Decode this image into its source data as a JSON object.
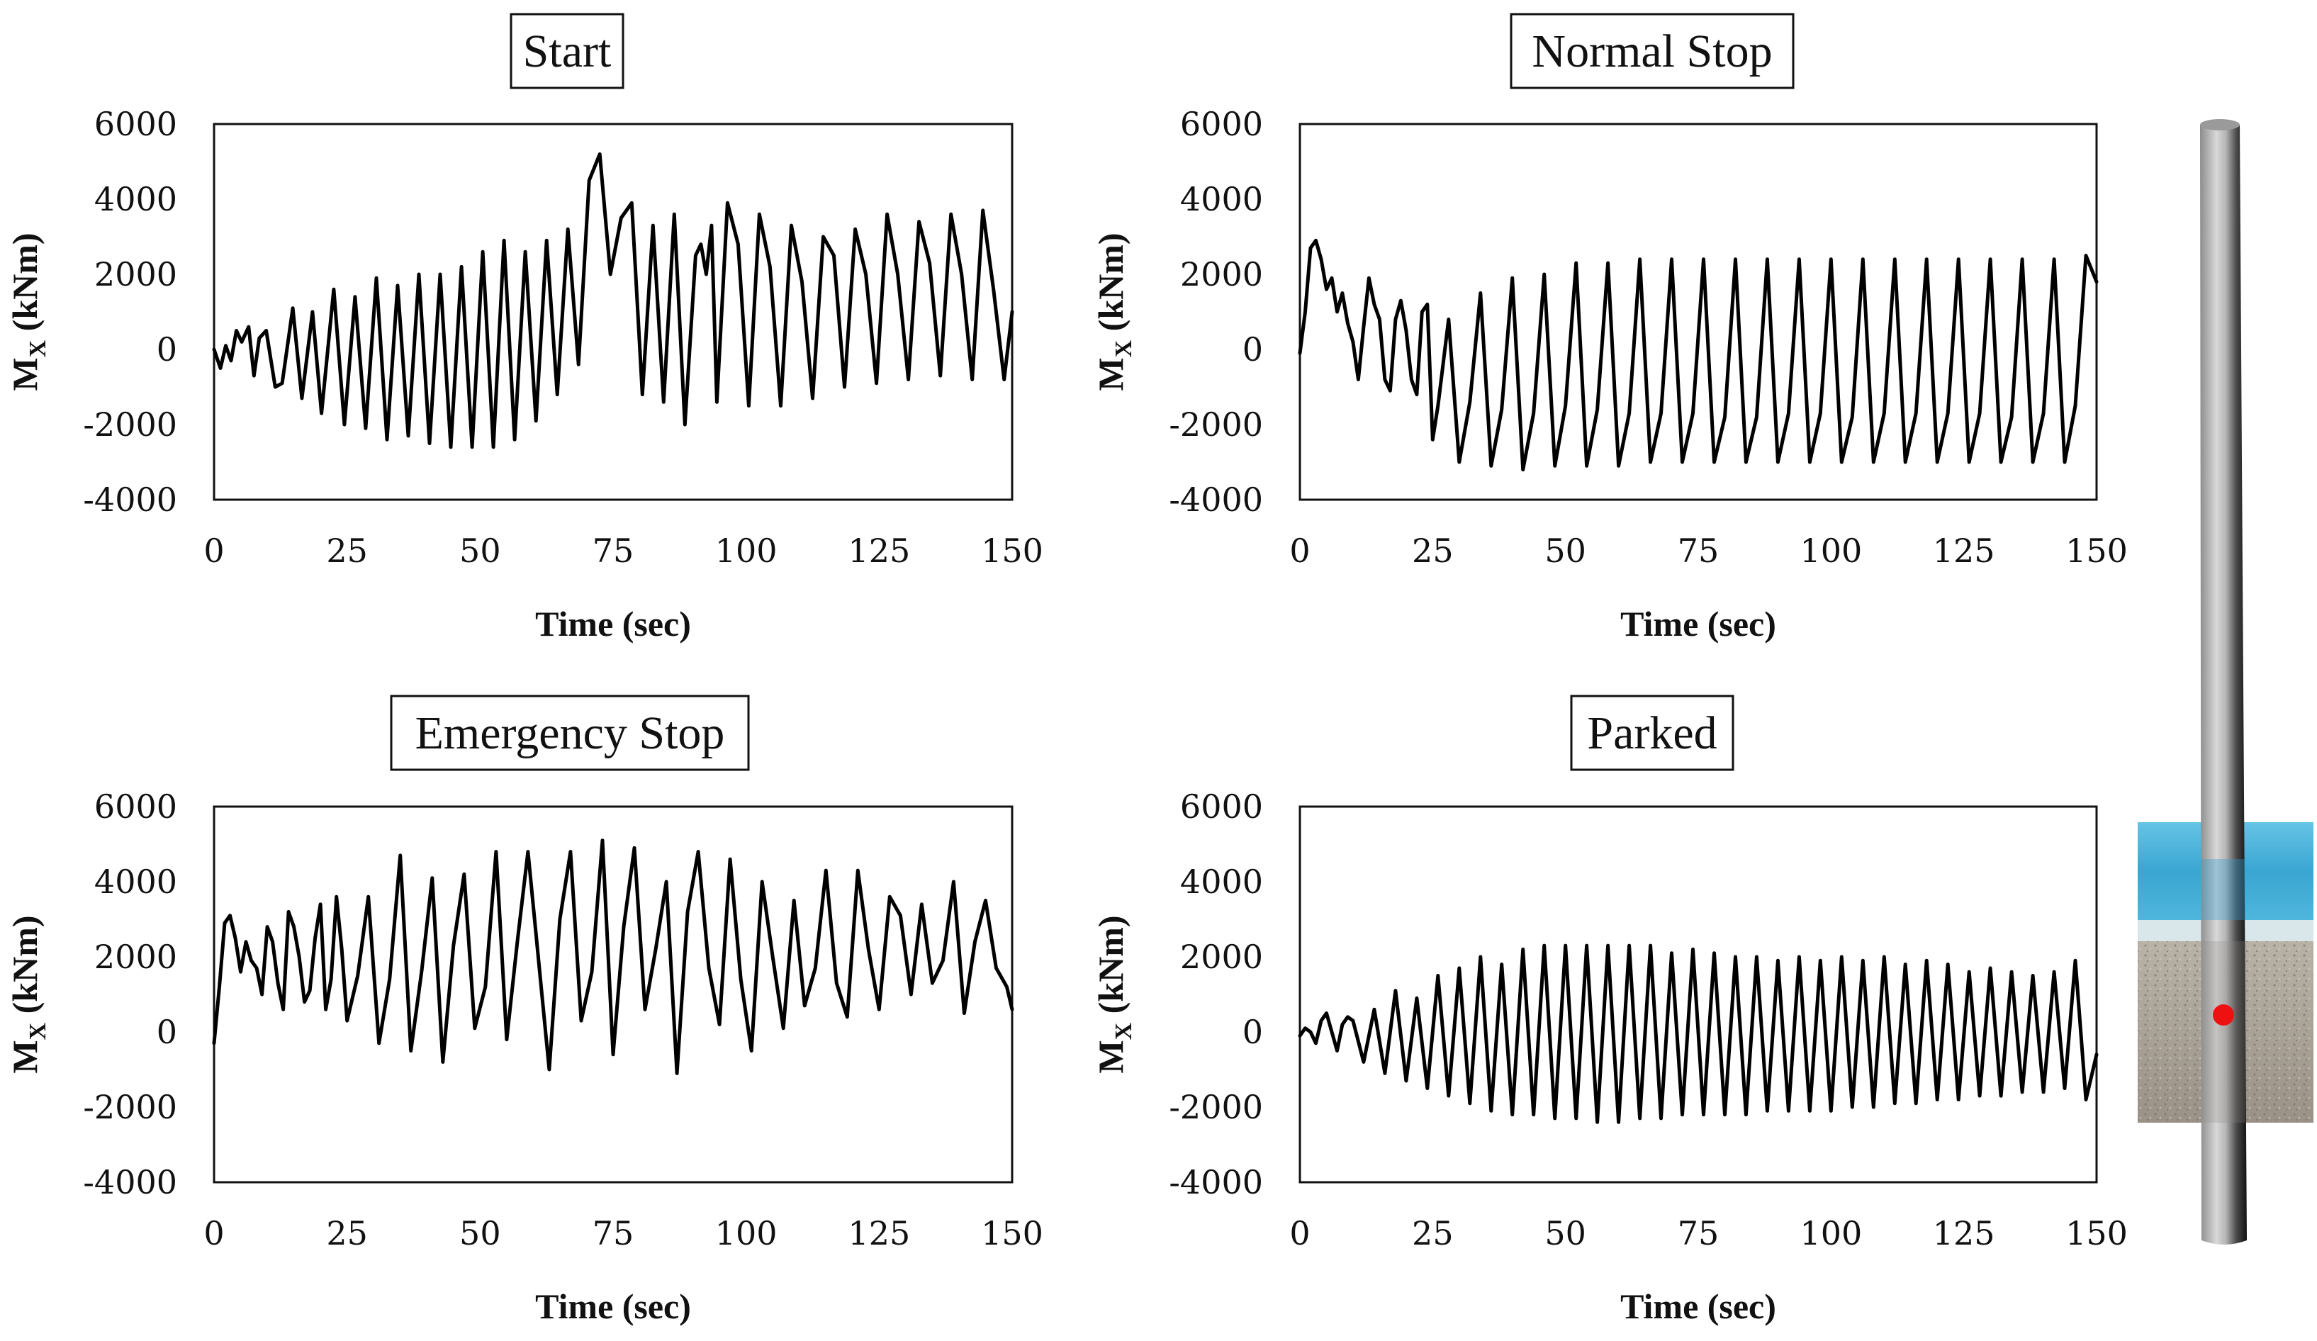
{
  "figure": {
    "y_tick_labels": [
      "6000",
      "4000",
      "2000",
      "0",
      "-2000",
      "-4000"
    ],
    "x_tick_labels": [
      "0",
      "25",
      "50",
      "75",
      "100",
      "125",
      "150"
    ]
  },
  "chart_data": [
    {
      "type": "line",
      "title": "Start",
      "xlabel": "Time (sec)",
      "ylabel_main": "M",
      "ylabel_sub": "X",
      "ylabel_unit": " (kNm)",
      "xlim": [
        0,
        150
      ],
      "ylim": [
        -4000,
        6000
      ],
      "xticks": [
        0,
        25,
        50,
        75,
        100,
        125,
        150
      ],
      "yticks": [
        6000,
        4000,
        2000,
        0,
        -2000,
        -4000
      ],
      "series": [
        {
          "name": "Mx",
          "color": "#000000",
          "x": [
            0,
            1.2,
            2.2,
            3.2,
            4.2,
            5.2,
            6.5,
            7.5,
            8.5,
            9.8,
            11.5,
            12.8,
            14.8,
            16.5,
            18.5,
            20.2,
            22.5,
            24.5,
            26.5,
            28.5,
            30.5,
            32.5,
            34.5,
            36.5,
            38.5,
            40.5,
            42.5,
            44.5,
            46.5,
            48.5,
            50.5,
            52.5,
            54.5,
            56.5,
            58.5,
            60.5,
            62.5,
            64.5,
            66.5,
            68.5,
            70.5,
            72.5,
            74.5,
            76.5,
            78.5,
            80.5,
            82.5,
            84.5,
            86.5,
            88.5,
            90.5,
            91.5,
            92.5,
            93.5,
            94.5,
            96.5,
            98.5,
            100.5,
            102.5,
            104.5,
            106.5,
            108.5,
            110.5,
            112.5,
            114.5,
            116.5,
            118.5,
            120.5,
            122.5,
            124.5,
            126.5,
            128.5,
            130.5,
            132.5,
            134.5,
            136.5,
            138.5,
            140.5,
            142.5,
            144.5,
            146.5,
            148.5,
            150
          ],
          "y": [
            0,
            -500,
            100,
            -300,
            500,
            200,
            600,
            -700,
            300,
            500,
            -1000,
            -900,
            1100,
            -1300,
            1000,
            -1700,
            1600,
            -2000,
            1400,
            -2100,
            1900,
            -2400,
            1700,
            -2300,
            2000,
            -2500,
            2000,
            -2600,
            2200,
            -2600,
            2600,
            -2600,
            2900,
            -2400,
            2600,
            -1900,
            2900,
            -1200,
            3200,
            -400,
            4500,
            5200,
            2000,
            3500,
            3900,
            -1200,
            3300,
            -1400,
            3600,
            -2000,
            2500,
            2800,
            2000,
            3300,
            -1400,
            3900,
            2800,
            -1500,
            3600,
            2200,
            -1500,
            3300,
            1800,
            -1300,
            3000,
            2500,
            -1000,
            3200,
            2000,
            -900,
            3600,
            2000,
            -800,
            3400,
            2300,
            -700,
            3600,
            2000,
            -800,
            3700,
            1600,
            -800,
            1000
          ]
        }
      ]
    },
    {
      "type": "line",
      "title": "Normal Stop",
      "xlabel": "Time (sec)",
      "ylabel_main": "M",
      "ylabel_sub": "X",
      "ylabel_unit": " (kNm)",
      "xlim": [
        0,
        150
      ],
      "ylim": [
        -4000,
        6000
      ],
      "xticks": [
        0,
        25,
        50,
        75,
        100,
        125,
        150
      ],
      "yticks": [
        6000,
        4000,
        2000,
        0,
        -2000,
        -4000
      ],
      "series": [
        {
          "name": "Mx",
          "color": "#000000",
          "x": [
            0,
            1,
            2,
            3,
            4,
            5,
            6,
            7,
            8,
            9,
            10,
            11,
            12,
            13,
            14,
            15,
            16,
            17,
            18,
            19,
            20,
            21,
            22,
            23,
            24,
            25,
            26,
            28,
            30,
            32,
            34,
            36,
            38,
            40,
            42,
            44,
            46,
            48,
            50,
            52,
            54,
            56,
            58,
            60,
            62,
            64,
            66,
            68,
            70,
            72,
            74,
            76,
            78,
            80,
            82,
            84,
            86,
            88,
            90,
            92,
            94,
            96,
            98,
            100,
            102,
            104,
            106,
            108,
            110,
            112,
            114,
            116,
            118,
            120,
            122,
            124,
            126,
            128,
            130,
            132,
            134,
            136,
            138,
            140,
            142,
            144,
            146,
            148,
            150
          ],
          "y": [
            -100,
            1000,
            2700,
            2900,
            2400,
            1600,
            1900,
            1000,
            1500,
            700,
            200,
            -800,
            600,
            1900,
            1200,
            800,
            -800,
            -1100,
            800,
            1300,
            500,
            -800,
            -1200,
            1000,
            1200,
            -2400,
            -1500,
            800,
            -3000,
            -1400,
            1500,
            -3100,
            -1600,
            1900,
            -3200,
            -1700,
            2000,
            -3100,
            -1500,
            2300,
            -3100,
            -1600,
            2300,
            -3100,
            -1700,
            2400,
            -3000,
            -1700,
            2400,
            -3000,
            -1700,
            2400,
            -3000,
            -1800,
            2400,
            -3000,
            -1800,
            2400,
            -3000,
            -1700,
            2400,
            -3000,
            -1700,
            2400,
            -3000,
            -1800,
            2400,
            -3000,
            -1700,
            2400,
            -3000,
            -1700,
            2400,
            -3000,
            -1700,
            2400,
            -3000,
            -1700,
            2400,
            -3000,
            -1800,
            2400,
            -3000,
            -1700,
            2400,
            -3000,
            -1500,
            2500,
            1800
          ]
        }
      ]
    },
    {
      "type": "line",
      "title": "Emergency Stop",
      "xlabel": "Time (sec)",
      "ylabel_main": "M",
      "ylabel_sub": "X",
      "ylabel_unit": " (kNm)",
      "xlim": [
        0,
        150
      ],
      "ylim": [
        -4000,
        6000
      ],
      "xticks": [
        0,
        25,
        50,
        75,
        100,
        125,
        150
      ],
      "yticks": [
        6000,
        4000,
        2000,
        0,
        -2000,
        -4000
      ],
      "series": [
        {
          "name": "Mx",
          "color": "#000000",
          "x": [
            0,
            1,
            2,
            3,
            4,
            5,
            6,
            7,
            8,
            9,
            10,
            11,
            12,
            13,
            14,
            15,
            16,
            17,
            18,
            19,
            20,
            21,
            22,
            23,
            24,
            25,
            27,
            29,
            31,
            33,
            35,
            37,
            39,
            41,
            43,
            45,
            47,
            49,
            51,
            53,
            55,
            57,
            59,
            61,
            63,
            65,
            67,
            69,
            71,
            73,
            75,
            77,
            79,
            81,
            83,
            85,
            87,
            89,
            91,
            93,
            95,
            97,
            99,
            101,
            103,
            105,
            107,
            109,
            111,
            113,
            115,
            117,
            119,
            121,
            123,
            125,
            127,
            129,
            131,
            133,
            135,
            137,
            139,
            141,
            143,
            145,
            147,
            149,
            150
          ],
          "y": [
            -300,
            1200,
            2900,
            3100,
            2500,
            1600,
            2400,
            1900,
            1700,
            1000,
            2800,
            2400,
            1300,
            600,
            3200,
            2800,
            2000,
            800,
            1100,
            2500,
            3400,
            600,
            1400,
            3600,
            2200,
            300,
            1500,
            3600,
            -300,
            1400,
            4700,
            -500,
            1600,
            4100,
            -800,
            2300,
            4200,
            100,
            1200,
            4800,
            -200,
            2400,
            4800,
            1900,
            -1000,
            3000,
            4800,
            300,
            1600,
            5100,
            -600,
            2800,
            4900,
            600,
            2200,
            4000,
            -1100,
            3200,
            4800,
            1700,
            200,
            4600,
            1400,
            -500,
            4000,
            2000,
            100,
            3500,
            700,
            1700,
            4300,
            1300,
            400,
            4300,
            2200,
            600,
            3600,
            3100,
            1000,
            3400,
            1300,
            1900,
            4000,
            500,
            2400,
            3500,
            1700,
            1200,
            600
          ]
        }
      ]
    },
    {
      "type": "line",
      "title": "Parked",
      "xlabel": "Time (sec)",
      "ylabel_main": "M",
      "ylabel_sub": "X",
      "ylabel_unit": " (kNm)",
      "xlim": [
        0,
        150
      ],
      "ylim": [
        -4000,
        6000
      ],
      "xticks": [
        0,
        25,
        50,
        75,
        100,
        125,
        150
      ],
      "yticks": [
        6000,
        4000,
        2000,
        0,
        -2000,
        -4000
      ],
      "series": [
        {
          "name": "Mx",
          "color": "#000000",
          "x": [
            0,
            1,
            2,
            3,
            4,
            5,
            6,
            7,
            8,
            9,
            10,
            12,
            14,
            16,
            18,
            20,
            22,
            24,
            26,
            28,
            30,
            32,
            34,
            36,
            38,
            40,
            42,
            44,
            46,
            48,
            50,
            52,
            54,
            56,
            58,
            60,
            62,
            64,
            66,
            68,
            70,
            72,
            74,
            76,
            78,
            80,
            82,
            84,
            86,
            88,
            90,
            92,
            94,
            96,
            98,
            100,
            102,
            104,
            106,
            108,
            110,
            112,
            114,
            116,
            118,
            120,
            122,
            124,
            126,
            128,
            130,
            132,
            134,
            136,
            138,
            140,
            142,
            144,
            146,
            148,
            150
          ],
          "y": [
            -100,
            100,
            0,
            -300,
            300,
            500,
            0,
            -500,
            200,
            400,
            300,
            -800,
            600,
            -1100,
            1100,
            -1300,
            900,
            -1500,
            1500,
            -1700,
            1700,
            -1900,
            2000,
            -2100,
            1800,
            -2200,
            2200,
            -2200,
            2300,
            -2300,
            2300,
            -2300,
            2300,
            -2400,
            2300,
            -2400,
            2300,
            -2300,
            2300,
            -2300,
            2100,
            -2200,
            2200,
            -2200,
            2100,
            -2200,
            2000,
            -2200,
            2000,
            -2100,
            1900,
            -2100,
            2000,
            -2100,
            1900,
            -2100,
            2000,
            -2000,
            1900,
            -2000,
            2000,
            -1900,
            1800,
            -1900,
            1900,
            -1800,
            1800,
            -1800,
            1600,
            -1700,
            1700,
            -1700,
            1600,
            -1600,
            1500,
            -1600,
            1600,
            -1500,
            1900,
            -1800,
            -600
          ]
        }
      ]
    }
  ]
}
